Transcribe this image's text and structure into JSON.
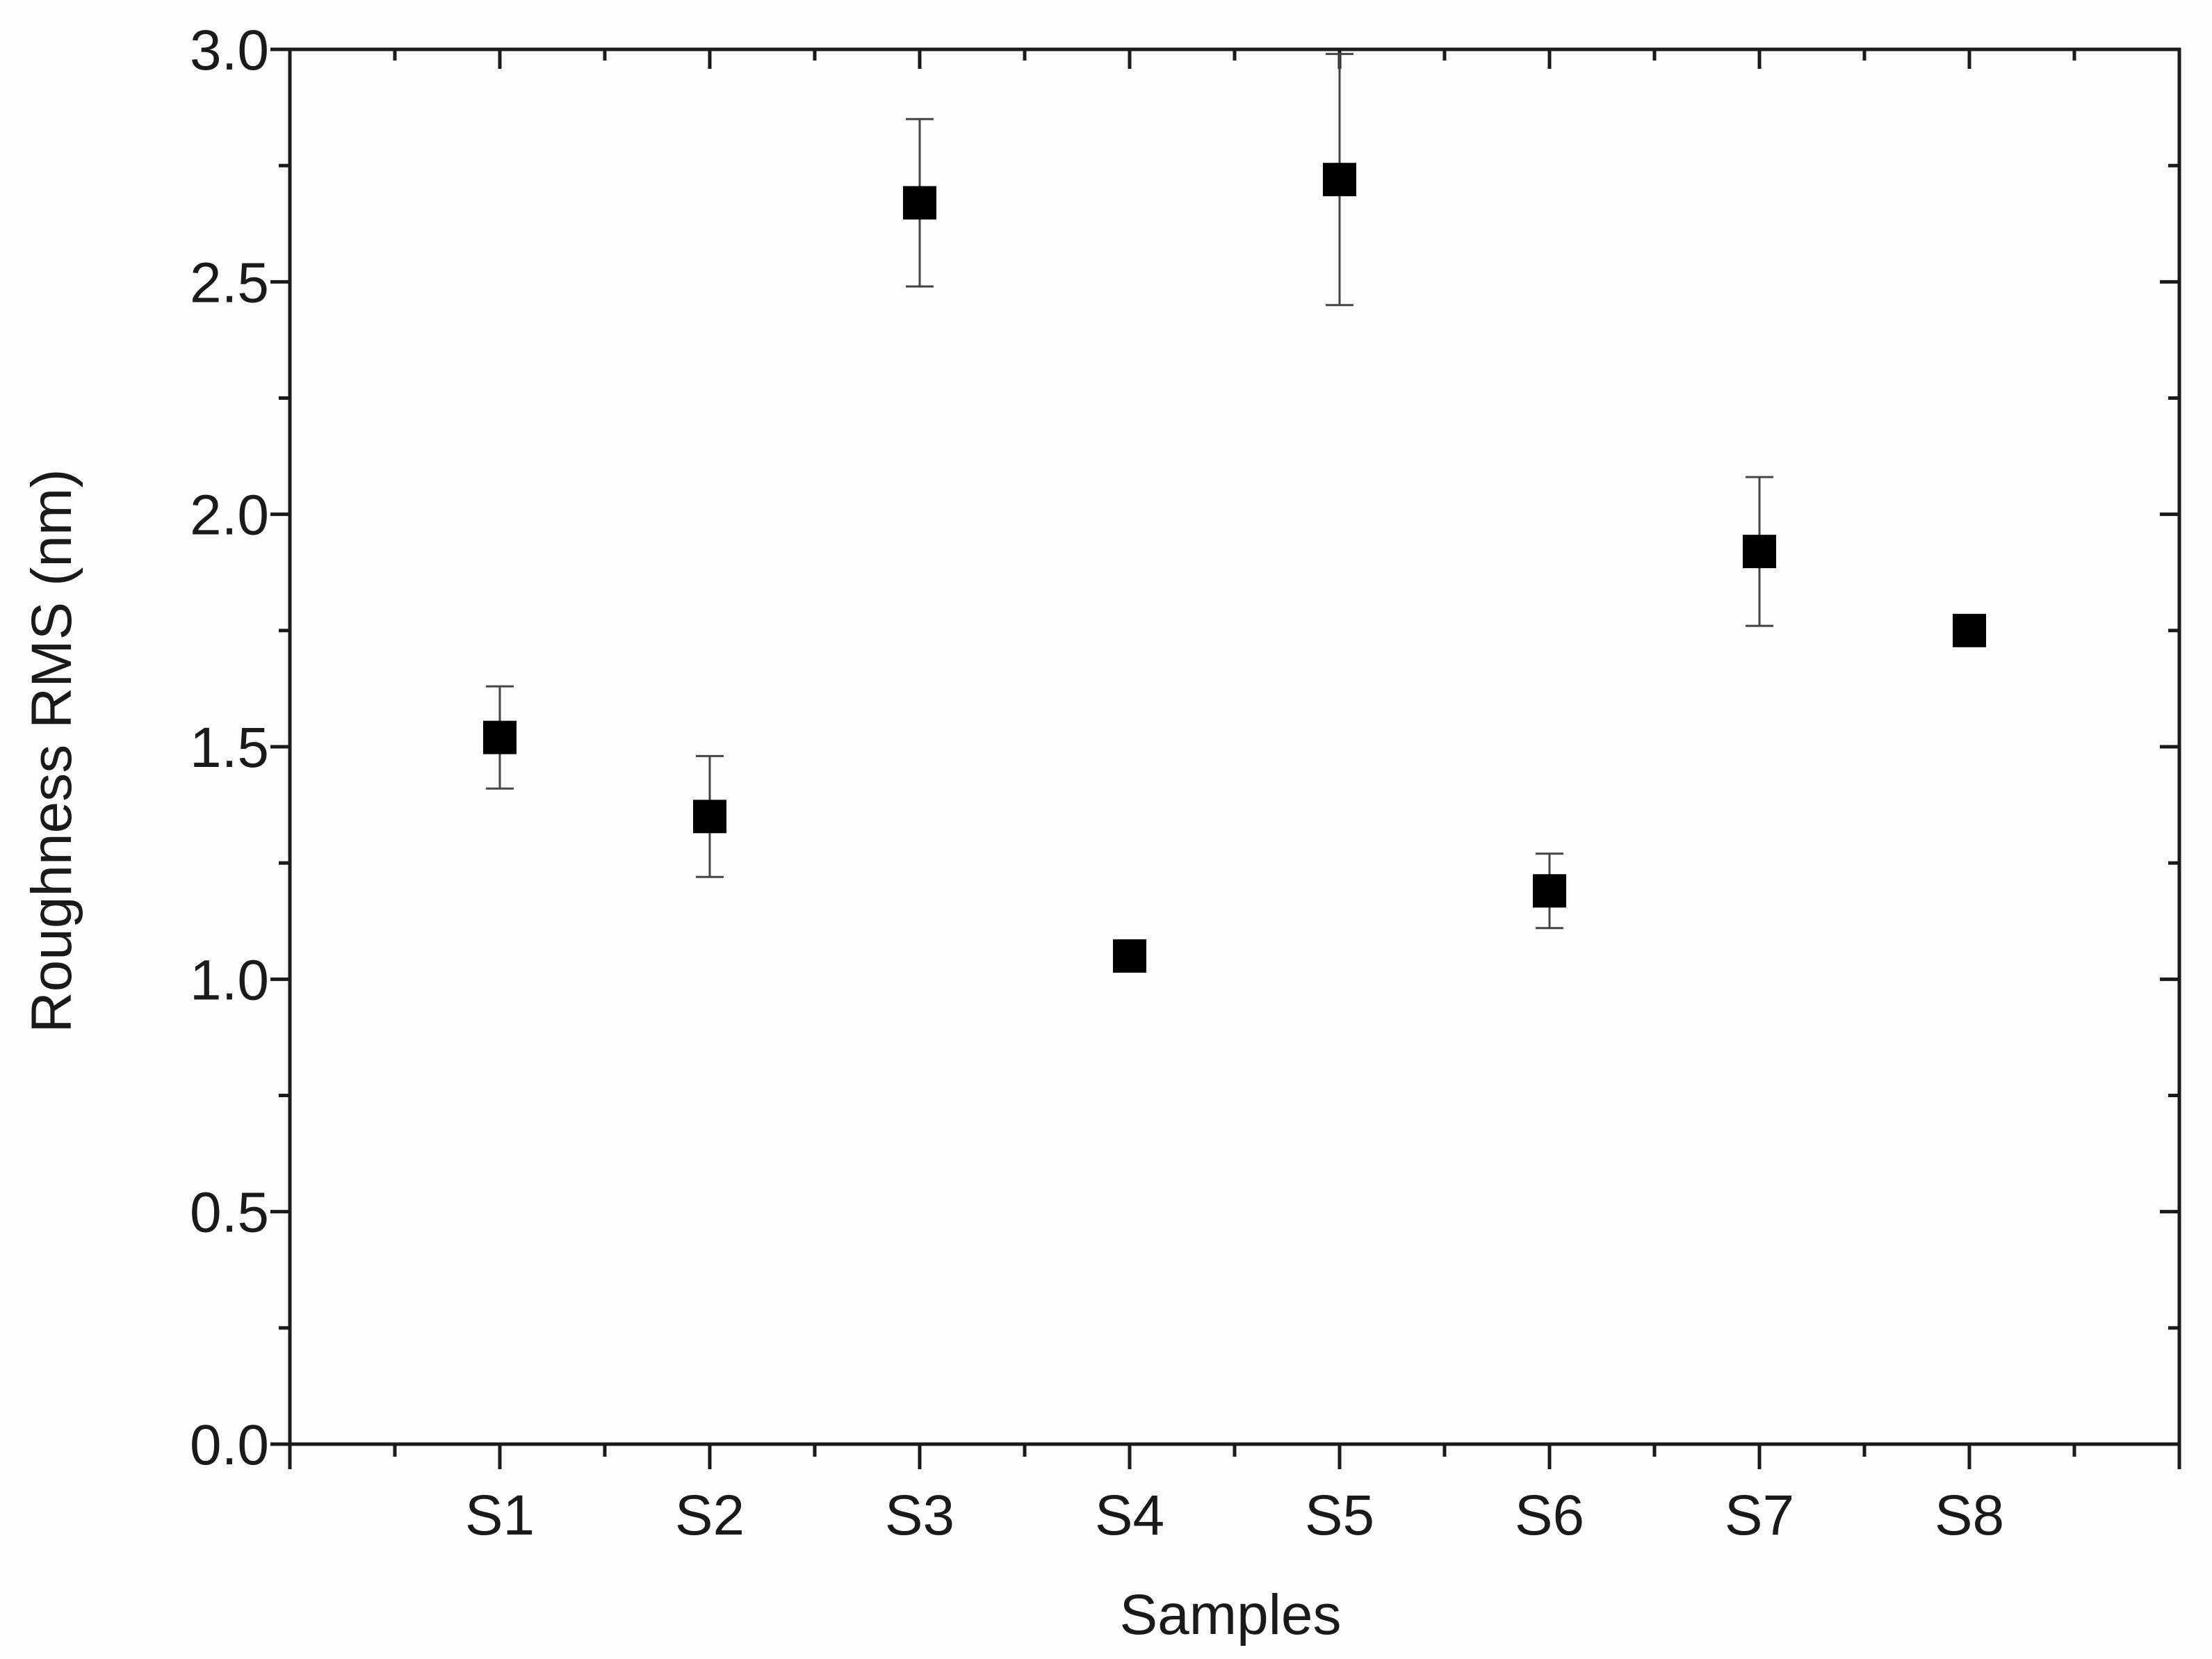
{
  "chart_data": {
    "type": "scatter",
    "xlabel": "Samples",
    "ylabel": "Roughness RMS (nm)",
    "categories": [
      "S1",
      "S2",
      "S3",
      "S4",
      "S5",
      "S6",
      "S7",
      "S8"
    ],
    "values": [
      1.52,
      1.35,
      2.67,
      1.05,
      2.72,
      1.19,
      1.92,
      1.75
    ],
    "errors": [
      0.11,
      0.13,
      0.18,
      0.03,
      0.27,
      0.08,
      0.16,
      0.01
    ],
    "color": "#000000",
    "ylim": [
      0,
      3
    ],
    "yticks": [
      {
        "value": 0,
        "label": "0.0"
      },
      {
        "value": 0.5,
        "label": "0.5"
      },
      {
        "value": 1,
        "label": "1.0"
      },
      {
        "value": 1.5,
        "label": "1.5"
      },
      {
        "value": 2,
        "label": "2.0"
      },
      {
        "value": 2.5,
        "label": "2.5"
      },
      {
        "value": 3,
        "label": "3.0"
      }
    ],
    "grid": false
  }
}
